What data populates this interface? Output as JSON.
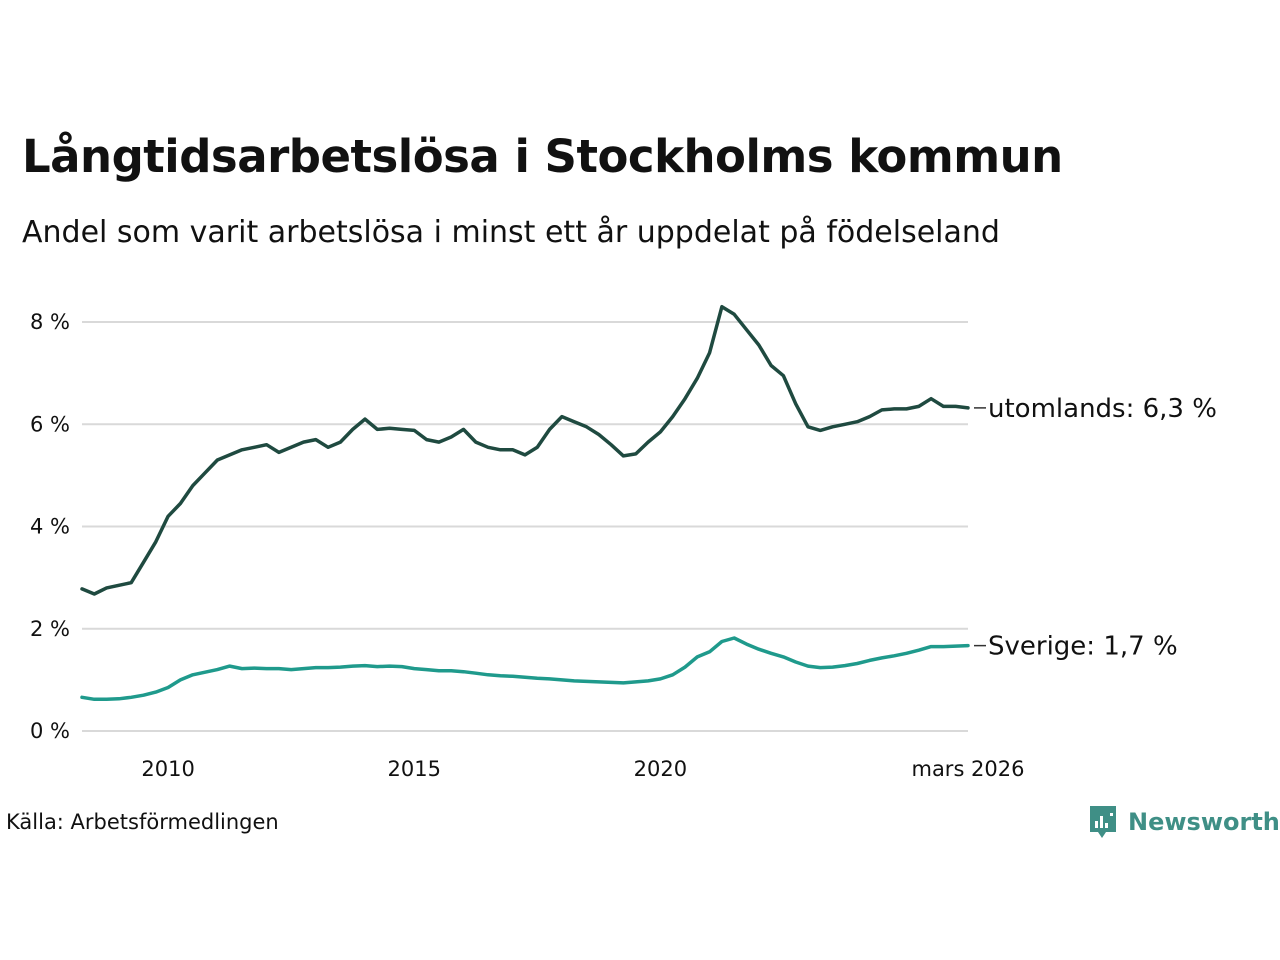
{
  "chart_data": {
    "type": "line",
    "title": "Långtidsarbetslösa i Stockholms kommun",
    "subtitle": "Andel som varit arbetslösa i minst ett år uppdelat på födelseland",
    "xlabel": "",
    "ylabel": "",
    "xlim": [
      2008.25,
      2026.25
    ],
    "ylim": [
      0,
      8.5
    ],
    "grid": true,
    "y_ticks": [
      {
        "value": 0,
        "label": "0 %"
      },
      {
        "value": 2,
        "label": "2 %"
      },
      {
        "value": 4,
        "label": "4 %"
      },
      {
        "value": 6,
        "label": "6 %"
      },
      {
        "value": 8,
        "label": "8 %"
      }
    ],
    "x_ticks": [
      {
        "value": 2010,
        "label": "2010"
      },
      {
        "value": 2015,
        "label": "2015"
      },
      {
        "value": 2020,
        "label": "2020"
      },
      {
        "value": 2026.25,
        "label": "mars 2026"
      }
    ],
    "series": [
      {
        "name": "utomlands",
        "end_label": "utomlands: 6,3 %",
        "color": "#1f4a40",
        "x": [
          2008.25,
          2008.5,
          2008.75,
          2009.0,
          2009.25,
          2009.5,
          2009.75,
          2010.0,
          2010.25,
          2010.5,
          2010.75,
          2011.0,
          2011.25,
          2011.5,
          2011.75,
          2012.0,
          2012.25,
          2012.5,
          2012.75,
          2013.0,
          2013.25,
          2013.5,
          2013.75,
          2014.0,
          2014.25,
          2014.5,
          2014.75,
          2015.0,
          2015.25,
          2015.5,
          2015.75,
          2016.0,
          2016.25,
          2016.5,
          2016.75,
          2017.0,
          2017.25,
          2017.5,
          2017.75,
          2018.0,
          2018.25,
          2018.5,
          2018.75,
          2019.0,
          2019.25,
          2019.5,
          2019.75,
          2020.0,
          2020.25,
          2020.5,
          2020.75,
          2021.0,
          2021.25,
          2021.5,
          2021.75,
          2022.0,
          2022.25,
          2022.5,
          2022.75,
          2023.0,
          2023.25,
          2023.5,
          2023.75,
          2024.0,
          2024.25,
          2024.5,
          2024.75,
          2025.0,
          2025.25,
          2025.5,
          2025.75,
          2026.0,
          2026.25
        ],
        "values": [
          2.78,
          2.68,
          2.8,
          2.85,
          2.9,
          3.3,
          3.7,
          4.2,
          4.45,
          4.8,
          5.05,
          5.3,
          5.4,
          5.5,
          5.55,
          5.6,
          5.45,
          5.55,
          5.65,
          5.7,
          5.55,
          5.65,
          5.9,
          6.1,
          5.9,
          5.92,
          5.9,
          5.88,
          5.7,
          5.65,
          5.75,
          5.9,
          5.65,
          5.55,
          5.5,
          5.5,
          5.4,
          5.55,
          5.9,
          6.15,
          6.05,
          5.95,
          5.8,
          5.6,
          5.38,
          5.42,
          5.65,
          5.85,
          6.15,
          6.5,
          6.9,
          7.4,
          8.3,
          8.15,
          7.85,
          7.55,
          7.15,
          6.95,
          6.4,
          5.95,
          5.88,
          5.95,
          6.0,
          6.05,
          6.15,
          6.28,
          6.3,
          6.3,
          6.35,
          6.5,
          6.35,
          6.35,
          6.32
        ]
      },
      {
        "name": "Sverige",
        "end_label": "Sverige: 1,7 %",
        "color": "#1f9a8c",
        "x": [
          2008.25,
          2008.5,
          2008.75,
          2009.0,
          2009.25,
          2009.5,
          2009.75,
          2010.0,
          2010.25,
          2010.5,
          2010.75,
          2011.0,
          2011.25,
          2011.5,
          2011.75,
          2012.0,
          2012.25,
          2012.5,
          2012.75,
          2013.0,
          2013.25,
          2013.5,
          2013.75,
          2014.0,
          2014.25,
          2014.5,
          2014.75,
          2015.0,
          2015.25,
          2015.5,
          2015.75,
          2016.0,
          2016.25,
          2016.5,
          2016.75,
          2017.0,
          2017.25,
          2017.5,
          2017.75,
          2018.0,
          2018.25,
          2018.5,
          2018.75,
          2019.0,
          2019.25,
          2019.5,
          2019.75,
          2020.0,
          2020.25,
          2020.5,
          2020.75,
          2021.0,
          2021.25,
          2021.5,
          2021.75,
          2022.0,
          2022.25,
          2022.5,
          2022.75,
          2023.0,
          2023.25,
          2023.5,
          2023.75,
          2024.0,
          2024.25,
          2024.5,
          2024.75,
          2025.0,
          2025.25,
          2025.5,
          2025.75,
          2026.0,
          2026.25
        ],
        "values": [
          0.66,
          0.62,
          0.62,
          0.63,
          0.66,
          0.7,
          0.76,
          0.85,
          1.0,
          1.1,
          1.15,
          1.2,
          1.27,
          1.22,
          1.23,
          1.22,
          1.22,
          1.2,
          1.22,
          1.24,
          1.24,
          1.25,
          1.27,
          1.28,
          1.26,
          1.27,
          1.26,
          1.22,
          1.2,
          1.18,
          1.18,
          1.16,
          1.13,
          1.1,
          1.08,
          1.07,
          1.05,
          1.03,
          1.02,
          1.0,
          0.98,
          0.97,
          0.96,
          0.95,
          0.94,
          0.96,
          0.98,
          1.02,
          1.1,
          1.25,
          1.45,
          1.55,
          1.75,
          1.82,
          1.7,
          1.6,
          1.52,
          1.45,
          1.35,
          1.27,
          1.24,
          1.25,
          1.28,
          1.32,
          1.38,
          1.43,
          1.47,
          1.52,
          1.58,
          1.65,
          1.65,
          1.66,
          1.67
        ]
      }
    ]
  },
  "source": "Källa: Arbetsförmedlingen",
  "logo": {
    "text": "Newsworthy",
    "color": "#3f8f86",
    "icon": "newsworthy-logo-icon"
  },
  "colors": {
    "grid": "#d9d9d9",
    "text": "#111111"
  }
}
